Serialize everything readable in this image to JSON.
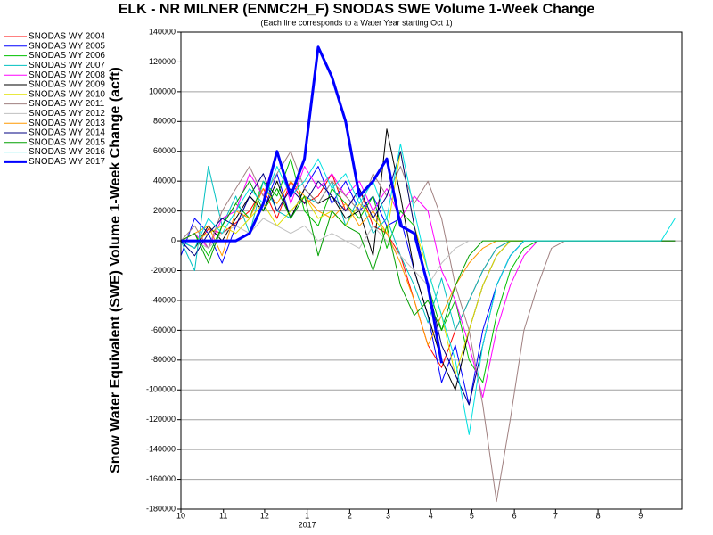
{
  "chart_data": {
    "type": "line",
    "title": "ELK - NR MILNER (ENMC2H_F) SNODAS SWE Volume 1-Week Change",
    "subtitle": "(Each line corresponds to a Water Year starting Oct 1)",
    "y_label": "Snow Water Equivalent (SWE) Volume 1-Week Change (acft)",
    "year_label": "2017",
    "x": [
      0,
      10,
      20,
      30,
      40,
      50,
      60,
      70,
      80,
      90,
      100,
      110,
      120,
      130,
      140,
      150,
      160,
      170,
      180,
      190,
      200,
      210,
      220,
      230,
      240,
      250,
      260,
      270,
      280,
      290,
      300,
      310,
      320,
      330,
      340,
      350,
      360
    ],
    "xlim": [
      0,
      365
    ],
    "xticks": [
      {
        "value": 0,
        "label": "10"
      },
      {
        "value": 31,
        "label": "11"
      },
      {
        "value": 61,
        "label": "12"
      },
      {
        "value": 92,
        "label": "1"
      },
      {
        "value": 123,
        "label": "2"
      },
      {
        "value": 151,
        "label": "3"
      },
      {
        "value": 182,
        "label": "4"
      },
      {
        "value": 212,
        "label": "5"
      },
      {
        "value": 243,
        "label": "6"
      },
      {
        "value": 273,
        "label": "7"
      },
      {
        "value": 304,
        "label": "8"
      },
      {
        "value": 335,
        "label": "9"
      }
    ],
    "ylim": [
      -180000,
      140000
    ],
    "yticks": [
      -180000,
      -160000,
      -140000,
      -120000,
      -100000,
      -80000,
      -60000,
      -40000,
      -20000,
      0,
      20000,
      40000,
      60000,
      80000,
      100000,
      120000,
      140000
    ],
    "grid": true,
    "series": [
      {
        "name": "SNODAS WY 2004",
        "color": "#ff0000",
        "width": 1,
        "values": [
          0,
          -5000,
          8000,
          5000,
          12000,
          20000,
          35000,
          15000,
          40000,
          25000,
          30000,
          45000,
          20000,
          35000,
          10000,
          5000,
          -10000,
          -40000,
          -70000,
          -85000,
          -60000,
          -40000,
          -20000,
          -5000,
          0,
          0,
          0,
          0,
          0,
          0,
          0,
          0,
          0,
          0,
          0,
          0,
          0
        ]
      },
      {
        "name": "SNODAS WY 2005",
        "color": "#0000ff",
        "width": 1,
        "values": [
          -10000,
          15000,
          5000,
          -15000,
          10000,
          30000,
          20000,
          45000,
          15000,
          35000,
          50000,
          25000,
          40000,
          20000,
          30000,
          10000,
          15000,
          -20000,
          -50000,
          -95000,
          -70000,
          -110000,
          -60000,
          -30000,
          -10000,
          0,
          0,
          0,
          0,
          0,
          0,
          0,
          0,
          0,
          0,
          0,
          0
        ]
      },
      {
        "name": "SNODAS WY 2006",
        "color": "#00c000",
        "width": 1,
        "values": [
          0,
          5000,
          -10000,
          10000,
          25000,
          15000,
          40000,
          30000,
          55000,
          20000,
          10000,
          35000,
          25000,
          15000,
          30000,
          -5000,
          20000,
          10000,
          -30000,
          -60000,
          -40000,
          -80000,
          -95000,
          -50000,
          -20000,
          -5000,
          0,
          0,
          0,
          0,
          0,
          0,
          0,
          0,
          0,
          0,
          0
        ]
      },
      {
        "name": "SNODAS WY 2007",
        "color": "#00c0c0",
        "width": 1,
        "values": [
          0,
          -20000,
          50000,
          10000,
          30000,
          5000,
          40000,
          20000,
          15000,
          30000,
          25000,
          40000,
          10000,
          30000,
          5000,
          15000,
          -10000,
          -30000,
          -55000,
          -25000,
          -60000,
          -40000,
          -20000,
          -5000,
          0,
          0,
          0,
          0,
          0,
          0,
          0,
          0,
          0,
          0,
          0,
          0,
          0
        ]
      },
      {
        "name": "SNODAS WY 2008",
        "color": "#ff00ff",
        "width": 1,
        "values": [
          0,
          5000,
          -5000,
          15000,
          20000,
          45000,
          30000,
          60000,
          25000,
          50000,
          35000,
          45000,
          30000,
          40000,
          20000,
          35000,
          15000,
          30000,
          20000,
          -20000,
          -40000,
          -70000,
          -105000,
          -60000,
          -30000,
          -10000,
          0,
          0,
          0,
          0,
          0,
          0,
          0,
          0,
          0,
          0,
          0
        ]
      },
      {
        "name": "SNODAS WY 2009",
        "color": "#000000",
        "width": 1,
        "values": [
          0,
          -5000,
          10000,
          0,
          15000,
          30000,
          20000,
          40000,
          15000,
          35000,
          25000,
          30000,
          15000,
          20000,
          -10000,
          75000,
          30000,
          -20000,
          -50000,
          -80000,
          -100000,
          -60000,
          -30000,
          -10000,
          0,
          0,
          0,
          0,
          0,
          0,
          0,
          0,
          0,
          0,
          0,
          0,
          0
        ]
      },
      {
        "name": "SNODAS WY 2010",
        "color": "#e0e000",
        "width": 1,
        "values": [
          0,
          0,
          5000,
          10000,
          5000,
          15000,
          25000,
          10000,
          20000,
          30000,
          15000,
          20000,
          10000,
          25000,
          15000,
          5000,
          60000,
          10000,
          -20000,
          -50000,
          -90000,
          -60000,
          -30000,
          -10000,
          0,
          0,
          0,
          0,
          0,
          0,
          0,
          0,
          0,
          0,
          0,
          0,
          0
        ]
      },
      {
        "name": "SNODAS WY 2011",
        "color": "#a08080",
        "width": 1,
        "values": [
          0,
          10000,
          -5000,
          20000,
          35000,
          50000,
          30000,
          45000,
          60000,
          35000,
          25000,
          40000,
          30000,
          20000,
          45000,
          30000,
          50000,
          25000,
          40000,
          15000,
          -30000,
          -60000,
          -110000,
          -175000,
          -120000,
          -60000,
          -30000,
          -5000,
          0,
          0,
          0,
          0,
          0,
          0,
          0,
          0,
          0
        ]
      },
      {
        "name": "SNODAS WY 2012",
        "color": "#c0c0c0",
        "width": 1,
        "values": [
          0,
          0,
          -5000,
          5000,
          10000,
          5000,
          15000,
          10000,
          5000,
          10000,
          0,
          5000,
          0,
          -5000,
          10000,
          0,
          -10000,
          -20000,
          -30000,
          -15000,
          -5000,
          0,
          0,
          0,
          0,
          0,
          0,
          0,
          0,
          0,
          0,
          0,
          0,
          0,
          0,
          0,
          0
        ]
      },
      {
        "name": "SNODAS WY 2013",
        "color": "#ff9900",
        "width": 1,
        "values": [
          0,
          5000,
          10000,
          -10000,
          20000,
          15000,
          35000,
          25000,
          40000,
          30000,
          20000,
          15000,
          25000,
          10000,
          20000,
          5000,
          -15000,
          -40000,
          -70000,
          -50000,
          -30000,
          -15000,
          -5000,
          0,
          0,
          0,
          0,
          0,
          0,
          0,
          0,
          0,
          0,
          0,
          0,
          0,
          0
        ]
      },
      {
        "name": "SNODAS WY 2014",
        "color": "#000080",
        "width": 1,
        "values": [
          0,
          -10000,
          5000,
          15000,
          10000,
          30000,
          45000,
          20000,
          35000,
          25000,
          40000,
          30000,
          20000,
          35000,
          15000,
          30000,
          60000,
          10000,
          -30000,
          -70000,
          -90000,
          -110000,
          -70000,
          -30000,
          -10000,
          0,
          0,
          0,
          0,
          0,
          0,
          0,
          0,
          0,
          0,
          0,
          0
        ]
      },
      {
        "name": "SNODAS WY 2015",
        "color": "#00a000",
        "width": 1,
        "values": [
          0,
          5000,
          -15000,
          10000,
          25000,
          40000,
          20000,
          35000,
          15000,
          30000,
          -10000,
          20000,
          10000,
          5000,
          -20000,
          10000,
          -30000,
          -50000,
          -40000,
          -60000,
          -30000,
          -10000,
          0,
          0,
          0,
          0,
          0,
          0,
          0,
          0,
          0,
          0,
          0,
          0,
          0,
          0,
          0
        ]
      },
      {
        "name": "SNODAS WY 2016",
        "color": "#00e0e0",
        "width": 1,
        "values": [
          0,
          -5000,
          15000,
          5000,
          20000,
          35000,
          25000,
          50000,
          30000,
          40000,
          55000,
          35000,
          45000,
          25000,
          40000,
          15000,
          65000,
          20000,
          -20000,
          -50000,
          -80000,
          -130000,
          -70000,
          -30000,
          -10000,
          0,
          0,
          0,
          0,
          0,
          0,
          0,
          0,
          0,
          0,
          0,
          15000
        ]
      },
      {
        "name": "SNODAS WY 2017",
        "color": "#0000ff",
        "width": 3,
        "values": [
          0,
          0,
          0,
          0,
          0,
          5000,
          25000,
          60000,
          30000,
          55000,
          130000,
          110000,
          80000,
          30000,
          40000,
          55000,
          10000,
          5000,
          -30000,
          -82000,
          null,
          null,
          null,
          null,
          null,
          null,
          null,
          null,
          null,
          null,
          null,
          null,
          null,
          null,
          null,
          null,
          null
        ]
      }
    ]
  }
}
